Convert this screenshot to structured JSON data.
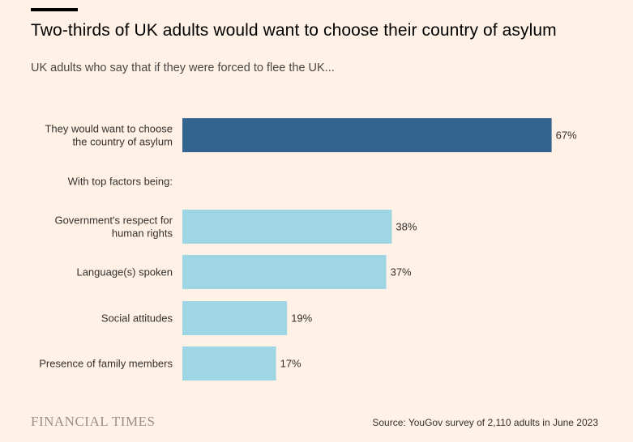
{
  "header": {
    "title": "Two-thirds of UK adults would want to choose their country of asylum",
    "subtitle": "UK adults who say that if they were forced to flee the UK..."
  },
  "chart_data": {
    "type": "bar",
    "orientation": "horizontal",
    "categories": [
      "They would want to choose the country of asylum",
      "With top factors being:",
      "Government's respect for human rights",
      "Language(s) spoken",
      "Social attitudes",
      "Presence of family members"
    ],
    "values": [
      67,
      null,
      38,
      37,
      19,
      17
    ],
    "value_labels": [
      "67%",
      "",
      "38%",
      "37%",
      "19%",
      "17%"
    ],
    "bar_colors": [
      "#33638f",
      null,
      "#9fd6e6",
      "#9fd6e6",
      "#9fd6e6",
      "#9fd6e6"
    ],
    "xlim": [
      0,
      100
    ],
    "grid": false,
    "legend": "none"
  },
  "footer": {
    "logo": "FINANCIAL TIMES",
    "source": "Source: YouGov survey of 2,110 adults in June 2023"
  }
}
